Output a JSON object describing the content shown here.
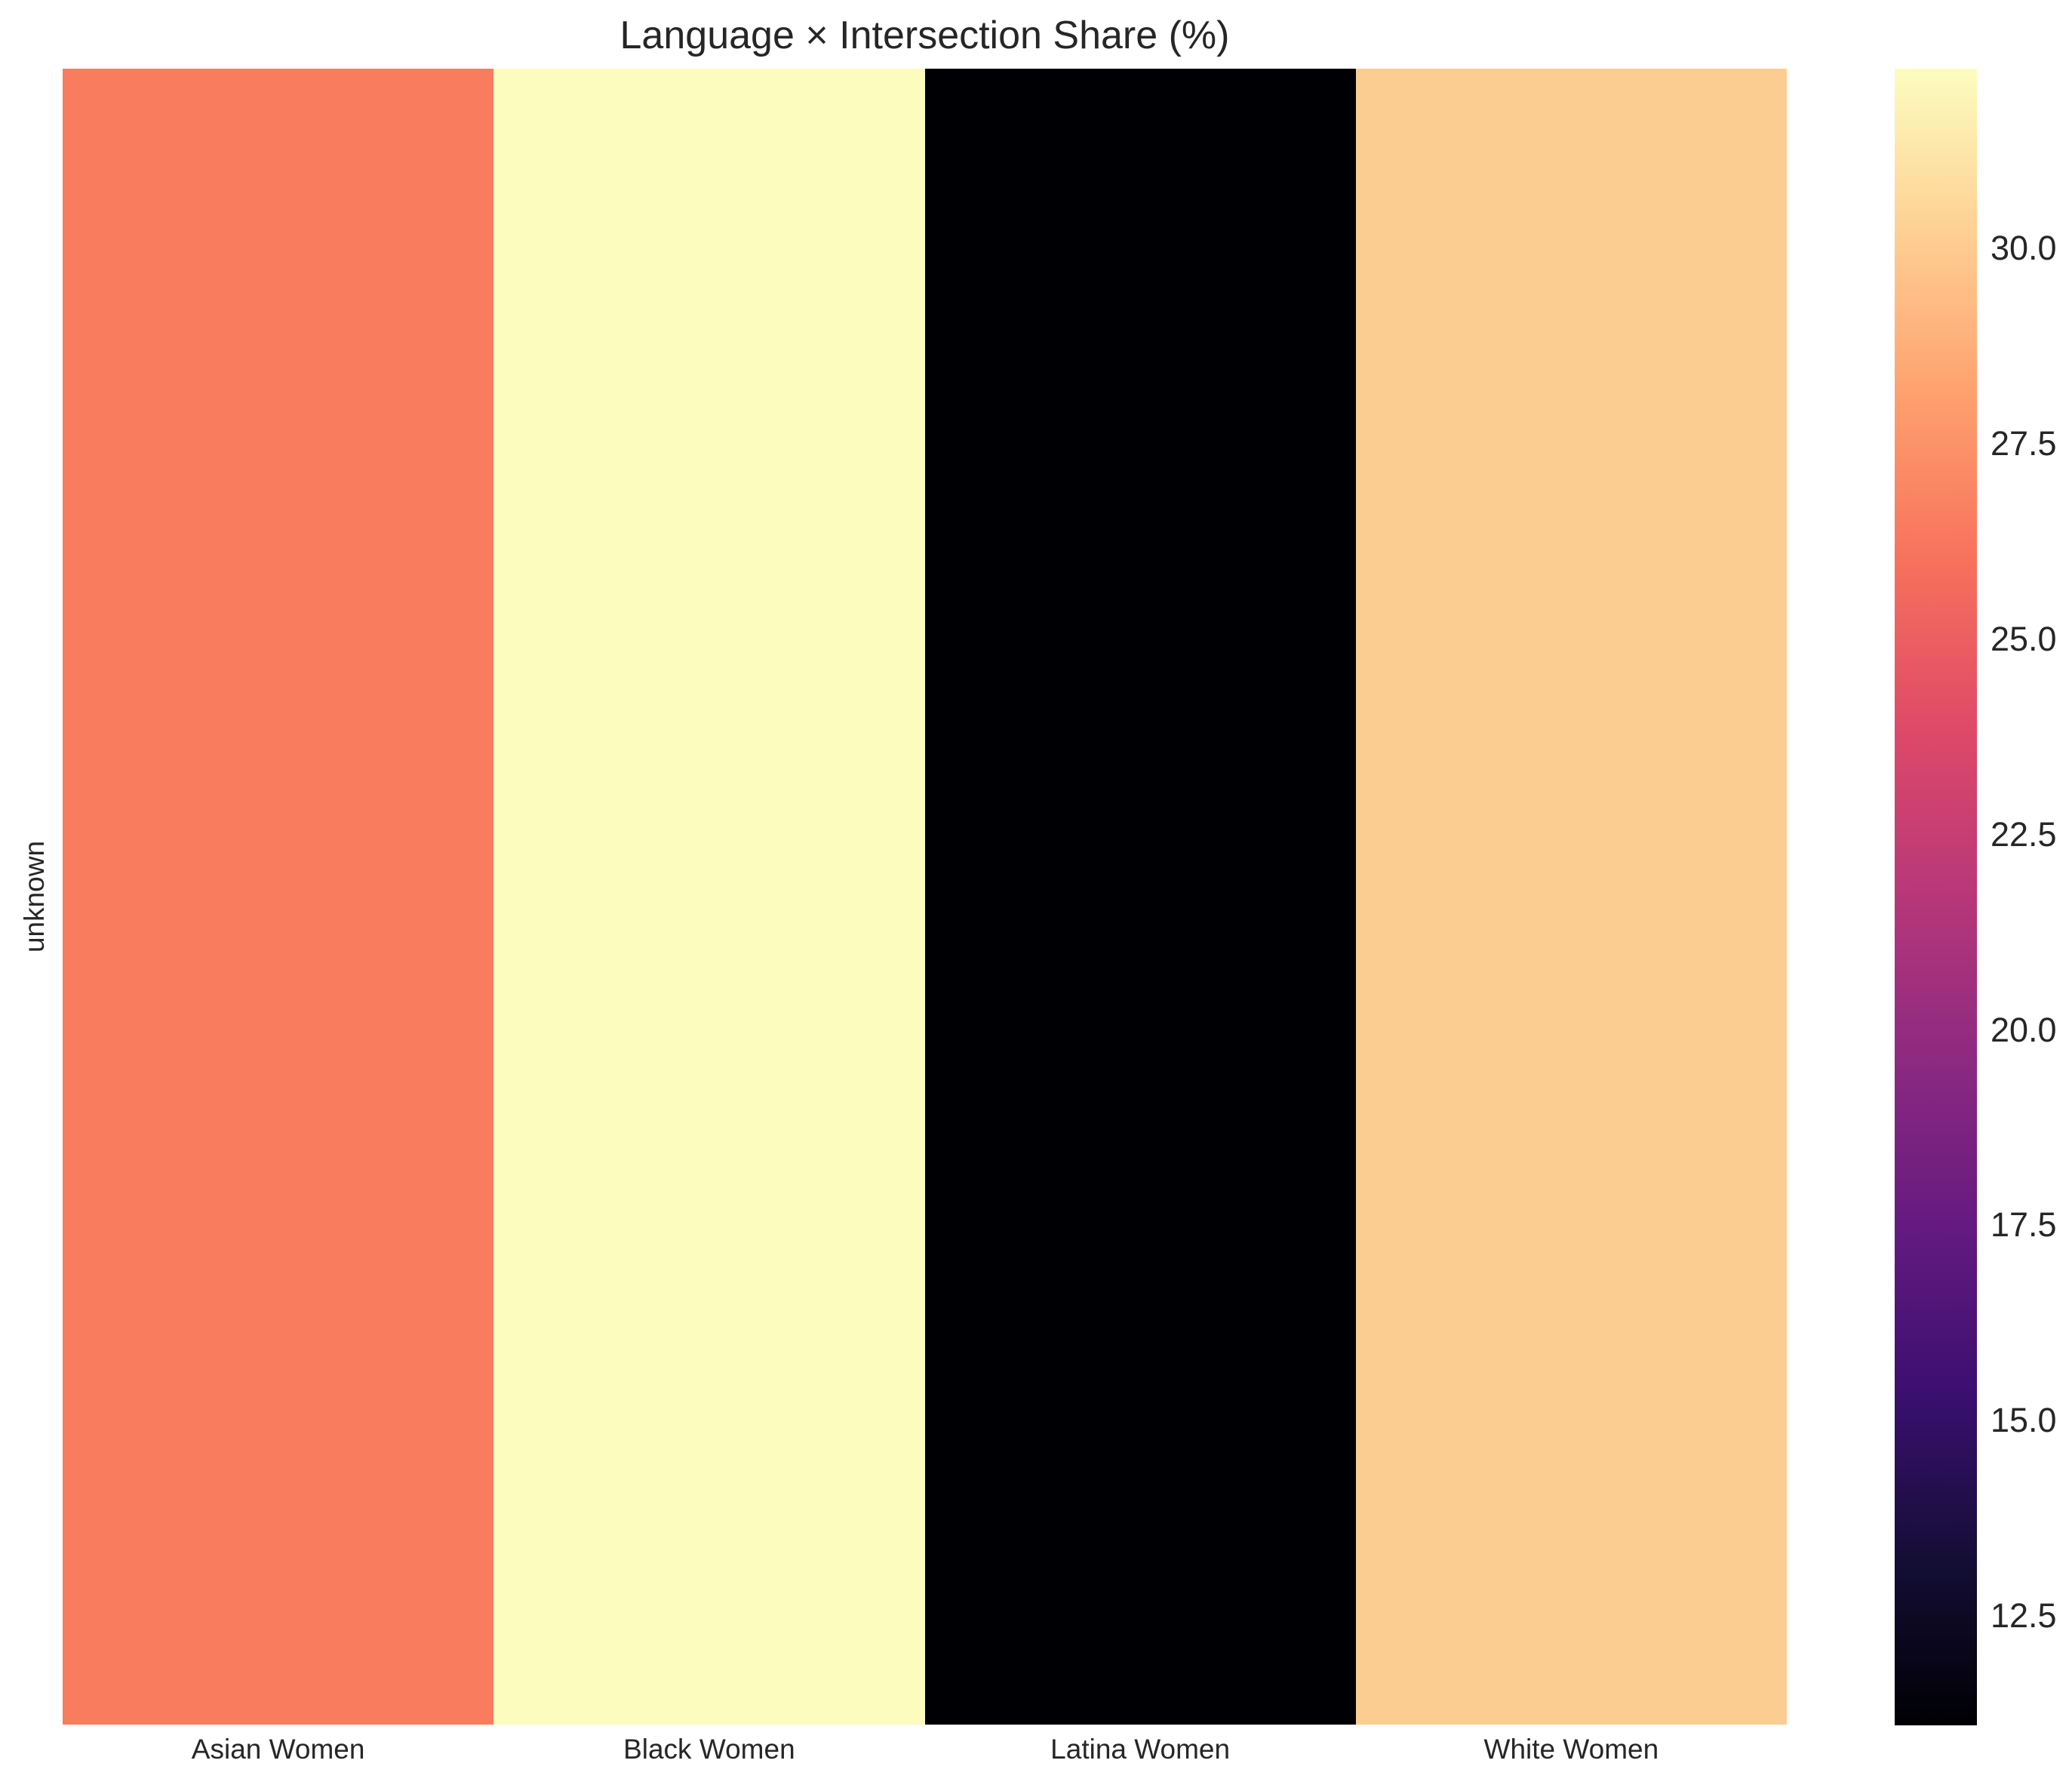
{
  "figure": {
    "background": "#ffffff",
    "text_color": "#262626"
  },
  "chart_data": {
    "type": "heatmap",
    "title": "Language × Intersection Share (%)",
    "xlabel": "",
    "ylabel": "unknown",
    "x_categories": [
      "Asian Women",
      "Black Women",
      "Latina Women",
      "White Women"
    ],
    "y_categories": [
      "unknown"
    ],
    "rows": [
      {
        "label": "unknown",
        "values": [
          26.8,
          32.3,
          11.1,
          29.8
        ]
      }
    ],
    "value_unit": "%",
    "colormap": "magma",
    "vmin": 11.1,
    "vmax": 32.3,
    "grid": false,
    "legend_position": "colorbar-right",
    "cell_colors": [
      [
        "#f87c5d",
        "#fbfcbd",
        "#000004",
        "#fccd90"
      ]
    ],
    "colorbar_ticks": [
      30.0,
      27.5,
      25.0,
      22.5,
      20.0,
      17.5,
      15.0,
      12.5
    ],
    "colorbar_tick_labels": [
      "30.0",
      "27.5",
      "25.0",
      "22.5",
      "20.0",
      "17.5",
      "15.0",
      "12.5"
    ],
    "colorbar_gradient_top_to_bottom": [
      "#fcfdbf",
      "#fecf92",
      "#fe9f6d",
      "#f7705c",
      "#de4968",
      "#b73779",
      "#8c2981",
      "#641a80",
      "#3b0f70",
      "#140e36",
      "#000004"
    ]
  }
}
